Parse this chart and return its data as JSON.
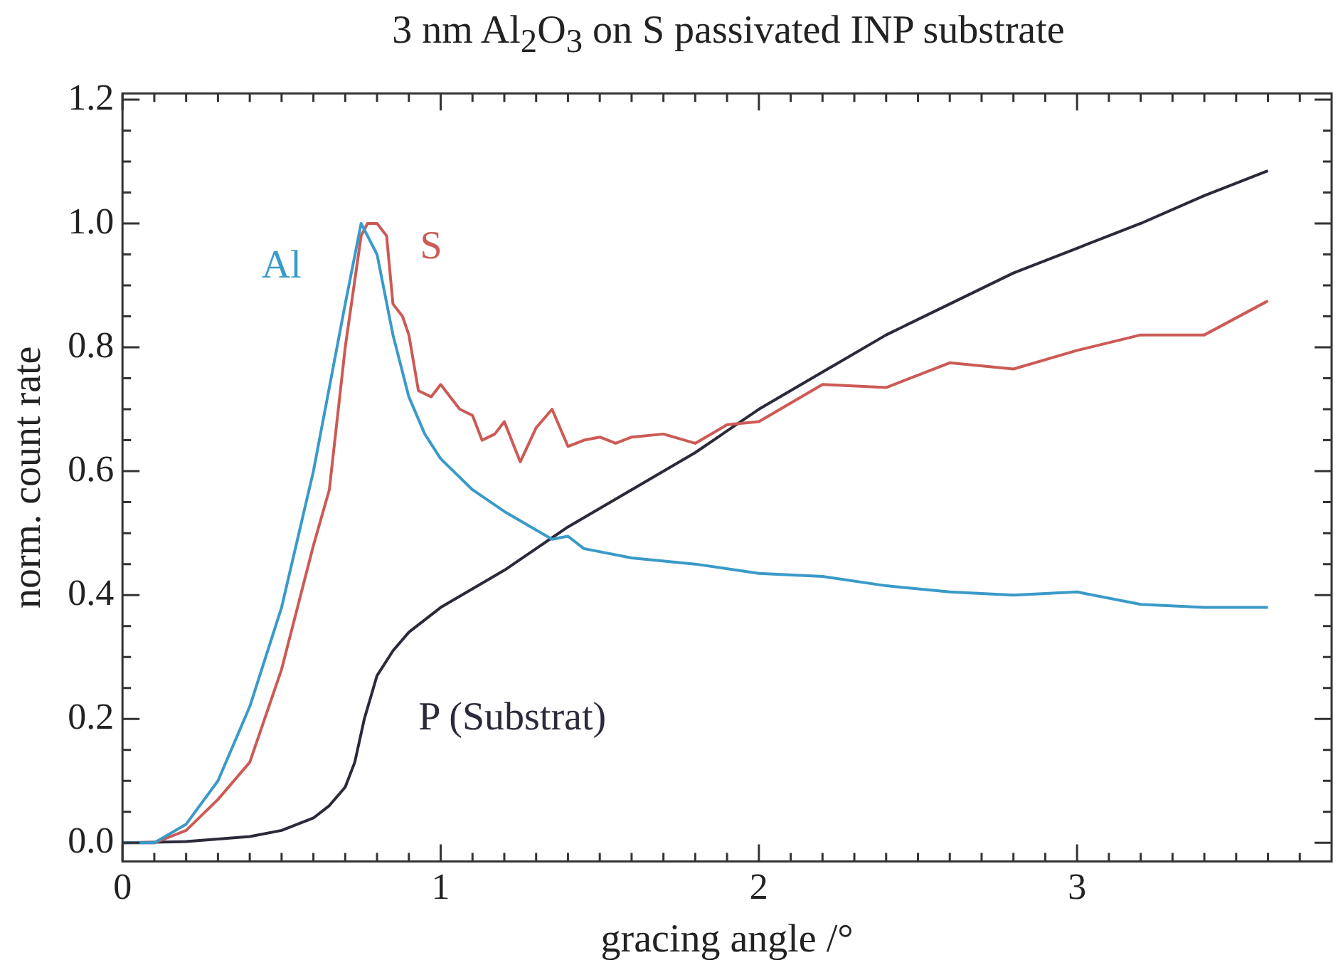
{
  "chart_data": {
    "type": "line",
    "title": "3 nm Al$_{2}$O$_{3}$ on S passivated INP substrate",
    "xlabel": "gracing angle /°",
    "ylabel": "norm. count rate",
    "grid": false,
    "legend": false,
    "marker": "none",
    "line_style": "solid",
    "xlim": [
      0,
      3.8
    ],
    "ylim": [
      -0.03,
      1.21
    ],
    "xticks": [
      0,
      {
        "value": 0.1,
        "label": null
      },
      {
        "value": 0.2,
        "label": null
      },
      {
        "value": 0.3,
        "label": null
      },
      {
        "value": 0.4,
        "label": null
      },
      {
        "value": 0.5,
        "label": null
      },
      {
        "value": 0.6,
        "label": null
      },
      {
        "value": 0.7,
        "label": null
      },
      {
        "value": 0.8,
        "label": null
      },
      {
        "value": 0.9,
        "label": null
      },
      1,
      {
        "value": 1.1,
        "label": null
      },
      {
        "value": 1.2,
        "label": null
      },
      {
        "value": 1.3,
        "label": null
      },
      {
        "value": 1.4,
        "label": null
      },
      {
        "value": 1.5,
        "label": null
      },
      {
        "value": 1.6,
        "label": null
      },
      {
        "value": 1.7,
        "label": null
      },
      {
        "value": 1.8,
        "label": null
      },
      {
        "value": 1.9,
        "label": null
      },
      2,
      {
        "value": 2.1,
        "label": null
      },
      {
        "value": 2.2,
        "label": null
      },
      {
        "value": 2.3,
        "label": null
      },
      {
        "value": 2.4,
        "label": null
      },
      {
        "value": 2.5,
        "label": null
      },
      {
        "value": 2.6,
        "label": null
      },
      {
        "value": 2.7,
        "label": null
      },
      {
        "value": 2.8,
        "label": null
      },
      {
        "value": 2.9,
        "label": null
      },
      3,
      {
        "value": 3.1,
        "label": null
      },
      {
        "value": 3.2,
        "label": null
      },
      {
        "value": 3.3,
        "label": null
      },
      {
        "value": 3.4,
        "label": null
      },
      {
        "value": 3.5,
        "label": null
      },
      {
        "value": 3.6,
        "label": null
      },
      {
        "value": 3.7,
        "label": null
      }
    ],
    "yticks": [
      {
        "value": 0,
        "label": "0.0"
      },
      {
        "value": 0.05,
        "label": null
      },
      {
        "value": 0.1,
        "label": null
      },
      {
        "value": 0.15,
        "label": null
      },
      {
        "value": 0.2,
        "label": "0.2"
      },
      {
        "value": 0.25,
        "label": null
      },
      {
        "value": 0.3,
        "label": null
      },
      {
        "value": 0.35,
        "label": null
      },
      {
        "value": 0.4,
        "label": "0.4"
      },
      {
        "value": 0.45,
        "label": null
      },
      {
        "value": 0.5,
        "label": null
      },
      {
        "value": 0.55,
        "label": null
      },
      {
        "value": 0.6,
        "label": "0.6"
      },
      {
        "value": 0.65,
        "label": null
      },
      {
        "value": 0.7,
        "label": null
      },
      {
        "value": 0.75,
        "label": null
      },
      {
        "value": 0.8,
        "label": "0.8"
      },
      {
        "value": 0.85,
        "label": null
      },
      {
        "value": 0.9,
        "label": null
      },
      {
        "value": 0.95,
        "label": null
      },
      {
        "value": 1.0,
        "label": "1.0"
      },
      {
        "value": 1.05,
        "label": null
      },
      {
        "value": 1.1,
        "label": null
      },
      {
        "value": 1.15,
        "label": null
      },
      {
        "value": 1.2,
        "label": "1.2"
      }
    ],
    "series": [
      {
        "name": "Al",
        "color": "#3a9ac9",
        "x": [
          0,
          0.1,
          0.2,
          0.3,
          0.4,
          0.5,
          0.6,
          0.7,
          0.75,
          0.8,
          0.85,
          0.9,
          0.95,
          1.0,
          1.1,
          1.2,
          1.3,
          1.35,
          1.4,
          1.45,
          1.6,
          1.8,
          2.0,
          2.2,
          2.4,
          2.6,
          2.8,
          3.0,
          3.2,
          3.4,
          3.6
        ],
        "values": [
          0,
          0,
          0.03,
          0.1,
          0.22,
          0.38,
          0.6,
          0.87,
          1.0,
          0.95,
          0.82,
          0.72,
          0.66,
          0.62,
          0.57,
          0.535,
          0.505,
          0.49,
          0.495,
          0.475,
          0.46,
          0.45,
          0.435,
          0.43,
          0.415,
          0.405,
          0.4,
          0.405,
          0.385,
          0.38,
          0.38
        ]
      },
      {
        "name": "S",
        "color": "#cc5a55",
        "x": [
          0,
          0.1,
          0.2,
          0.3,
          0.4,
          0.5,
          0.6,
          0.65,
          0.7,
          0.75,
          0.77,
          0.8,
          0.83,
          0.85,
          0.88,
          0.9,
          0.93,
          0.97,
          1.0,
          1.03,
          1.06,
          1.1,
          1.13,
          1.17,
          1.2,
          1.25,
          1.3,
          1.35,
          1.4,
          1.45,
          1.5,
          1.55,
          1.6,
          1.7,
          1.8,
          1.9,
          2.0,
          2.2,
          2.4,
          2.6,
          2.8,
          3.0,
          3.2,
          3.4,
          3.6
        ],
        "values": [
          0,
          0,
          0.02,
          0.07,
          0.13,
          0.28,
          0.48,
          0.57,
          0.8,
          0.98,
          1.0,
          1.0,
          0.98,
          0.87,
          0.85,
          0.82,
          0.73,
          0.72,
          0.74,
          0.72,
          0.7,
          0.69,
          0.65,
          0.66,
          0.68,
          0.615,
          0.67,
          0.7,
          0.64,
          0.65,
          0.655,
          0.645,
          0.655,
          0.66,
          0.645,
          0.675,
          0.68,
          0.74,
          0.735,
          0.775,
          0.765,
          0.795,
          0.82,
          0.82,
          0.875
        ]
      },
      {
        "name": "P (Substrat)",
        "color": "#2a2a3a",
        "x": [
          0,
          0.2,
          0.4,
          0.5,
          0.6,
          0.65,
          0.7,
          0.73,
          0.76,
          0.8,
          0.85,
          0.9,
          1.0,
          1.2,
          1.4,
          1.6,
          1.8,
          2.0,
          2.2,
          2.4,
          2.6,
          2.8,
          3.0,
          3.2,
          3.4,
          3.6
        ],
        "values": [
          0,
          0.002,
          0.01,
          0.02,
          0.04,
          0.06,
          0.09,
          0.13,
          0.2,
          0.27,
          0.31,
          0.34,
          0.38,
          0.44,
          0.51,
          0.57,
          0.63,
          0.7,
          0.76,
          0.82,
          0.87,
          0.92,
          0.96,
          1.0,
          1.045,
          1.085
        ]
      }
    ]
  }
}
